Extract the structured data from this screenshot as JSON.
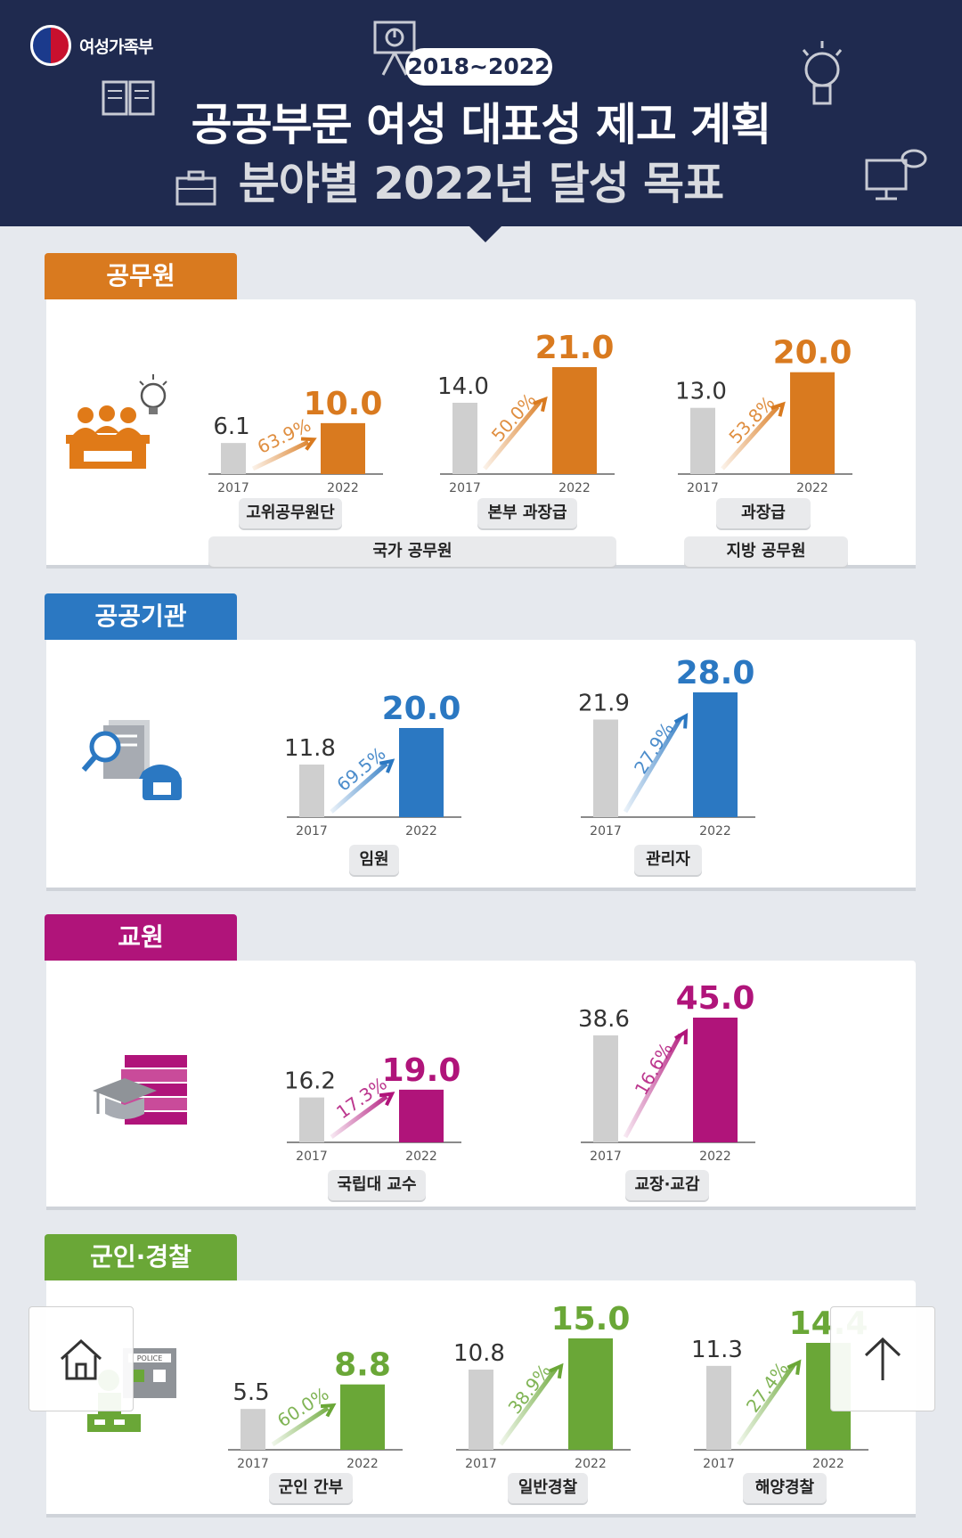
{
  "header": {
    "logo_text": "여성가족부",
    "period": "2018~2022",
    "title": "공공부문 여성 대표성 제고 계획",
    "subtitle": "분야별 2022년 달성 목표"
  },
  "colors": {
    "navy": "#1f2a4f",
    "orange": "#d97a1f",
    "blue": "#2b78c2",
    "magenta": "#b0147a",
    "green": "#6aa737",
    "gray_bar": "#cfcfcf"
  },
  "sections": [
    {
      "name": "공무원",
      "color": "#d97a1f",
      "icon": "officials-at-desk-icon",
      "groups": [
        {
          "label": "국가 공무원"
        },
        {
          "label": "지방 공무원"
        }
      ]
    },
    {
      "name": "공공기관",
      "color": "#2b78c2",
      "icon": "document-search-phone-icon",
      "groups": []
    },
    {
      "name": "교원",
      "color": "#b0147a",
      "icon": "books-graduation-cap-icon",
      "groups": []
    },
    {
      "name": "군인·경찰",
      "color": "#6aa737",
      "icon": "police-station-icon",
      "groups": []
    }
  ],
  "chart_data": [
    {
      "type": "bar",
      "section": "공무원",
      "category": "고위공무원단",
      "x": [
        "2017",
        "2022"
      ],
      "values": [
        6.1,
        10.0
      ],
      "growth": "63.9%"
    },
    {
      "type": "bar",
      "section": "공무원",
      "category": "본부 과장급",
      "x": [
        "2017",
        "2022"
      ],
      "values": [
        14.0,
        21.0
      ],
      "growth": "50.0%"
    },
    {
      "type": "bar",
      "section": "공무원",
      "category": "과장급",
      "x": [
        "2017",
        "2022"
      ],
      "values": [
        13.0,
        20.0
      ],
      "growth": "53.8%"
    },
    {
      "type": "bar",
      "section": "공공기관",
      "category": "임원",
      "x": [
        "2017",
        "2022"
      ],
      "values": [
        11.8,
        20.0
      ],
      "growth": "69.5%"
    },
    {
      "type": "bar",
      "section": "공공기관",
      "category": "관리자",
      "x": [
        "2017",
        "2022"
      ],
      "values": [
        21.9,
        28.0
      ],
      "growth": "27.9%"
    },
    {
      "type": "bar",
      "section": "교원",
      "category": "국립대 교수",
      "x": [
        "2017",
        "2022"
      ],
      "values": [
        16.2,
        19.0
      ],
      "growth": "17.3%"
    },
    {
      "type": "bar",
      "section": "교원",
      "category": "교장·교감",
      "x": [
        "2017",
        "2022"
      ],
      "values": [
        38.6,
        45.0
      ],
      "growth": "16.6%"
    },
    {
      "type": "bar",
      "section": "군인·경찰",
      "category": "군인 간부",
      "x": [
        "2017",
        "2022"
      ],
      "values": [
        5.5,
        8.8
      ],
      "growth": "60.0%"
    },
    {
      "type": "bar",
      "section": "군인·경찰",
      "category": "일반경찰",
      "x": [
        "2017",
        "2022"
      ],
      "values": [
        10.8,
        15.0
      ],
      "growth": "38.9%"
    },
    {
      "type": "bar",
      "section": "군인·경찰",
      "category": "해양경찰",
      "x": [
        "2017",
        "2022"
      ],
      "values": [
        11.3,
        14.4
      ],
      "growth": "27.4%"
    }
  ],
  "floating": {
    "home_icon": "home-icon",
    "top_icon": "arrow-up-icon"
  }
}
